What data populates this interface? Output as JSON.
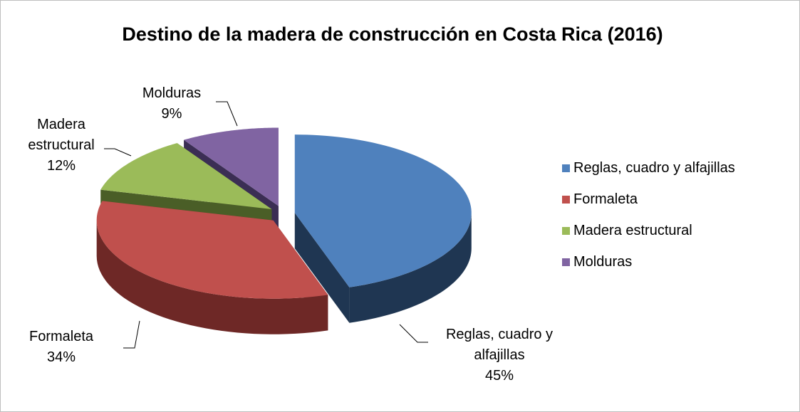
{
  "chart_data": {
    "type": "pie",
    "title": "Destino de la madera de construcción en Costa Rica (2016)",
    "categories": [
      "Reglas, cuadro y alfajillas",
      "Formaleta",
      "Madera estructural",
      "Molduras"
    ],
    "values": [
      45,
      34,
      12,
      9
    ],
    "value_labels": [
      "45%",
      "34%",
      "12%",
      "9%"
    ],
    "colors": [
      "#4f81bd",
      "#c0504d",
      "#9bbb59",
      "#8064a2"
    ],
    "legend": "right"
  }
}
